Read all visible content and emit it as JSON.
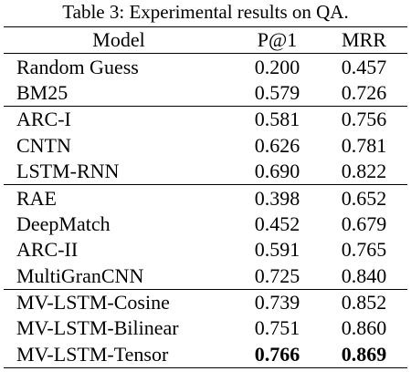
{
  "table": {
    "caption": "Table 3: Experimental results on QA.",
    "header": [
      "Model",
      "P@1",
      "MRR"
    ],
    "groups": [
      [
        [
          "Random Guess",
          "0.200",
          "0.457"
        ],
        [
          "BM25",
          "0.579",
          "0.726"
        ]
      ],
      [
        [
          "ARC-I",
          "0.581",
          "0.756"
        ],
        [
          "CNTN",
          "0.626",
          "0.781"
        ],
        [
          "LSTM-RNN",
          "0.690",
          "0.822"
        ]
      ],
      [
        [
          "RAE",
          "0.398",
          "0.652"
        ],
        [
          "DeepMatch",
          "0.452",
          "0.679"
        ],
        [
          "ARC-II",
          "0.591",
          "0.765"
        ],
        [
          "MultiGranCNN",
          "0.725",
          "0.840"
        ]
      ],
      [
        [
          "MV-LSTM-Cosine",
          "0.739",
          "0.852"
        ],
        [
          "MV-LSTM-Bilinear",
          "0.751",
          "0.860"
        ],
        [
          "MV-LSTM-Tensor",
          "0.766",
          "0.869"
        ]
      ]
    ]
  }
}
